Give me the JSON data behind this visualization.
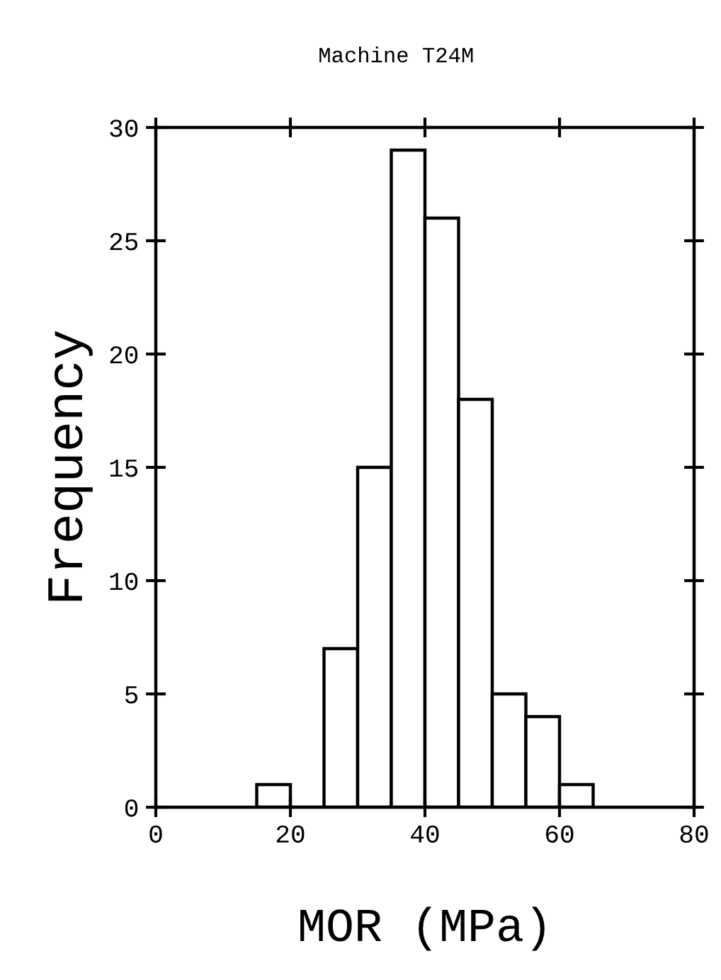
{
  "chart_data": {
    "type": "histogram",
    "title": "Machine T24M",
    "xlabel": "MOR (MPa)",
    "ylabel": "Frequency",
    "bins": [
      15,
      20,
      25,
      30,
      35,
      40,
      45,
      50,
      55,
      60,
      65
    ],
    "values": [
      1,
      0,
      7,
      15,
      29,
      26,
      18,
      5,
      4,
      1
    ],
    "color": "#ffffff",
    "xlim": [
      0,
      80
    ],
    "ylim": [
      0,
      30
    ],
    "xticks": [
      0,
      20,
      40,
      60,
      80
    ],
    "yticks": [
      0,
      5,
      10,
      15,
      20,
      25,
      30
    ],
    "grid": false
  }
}
